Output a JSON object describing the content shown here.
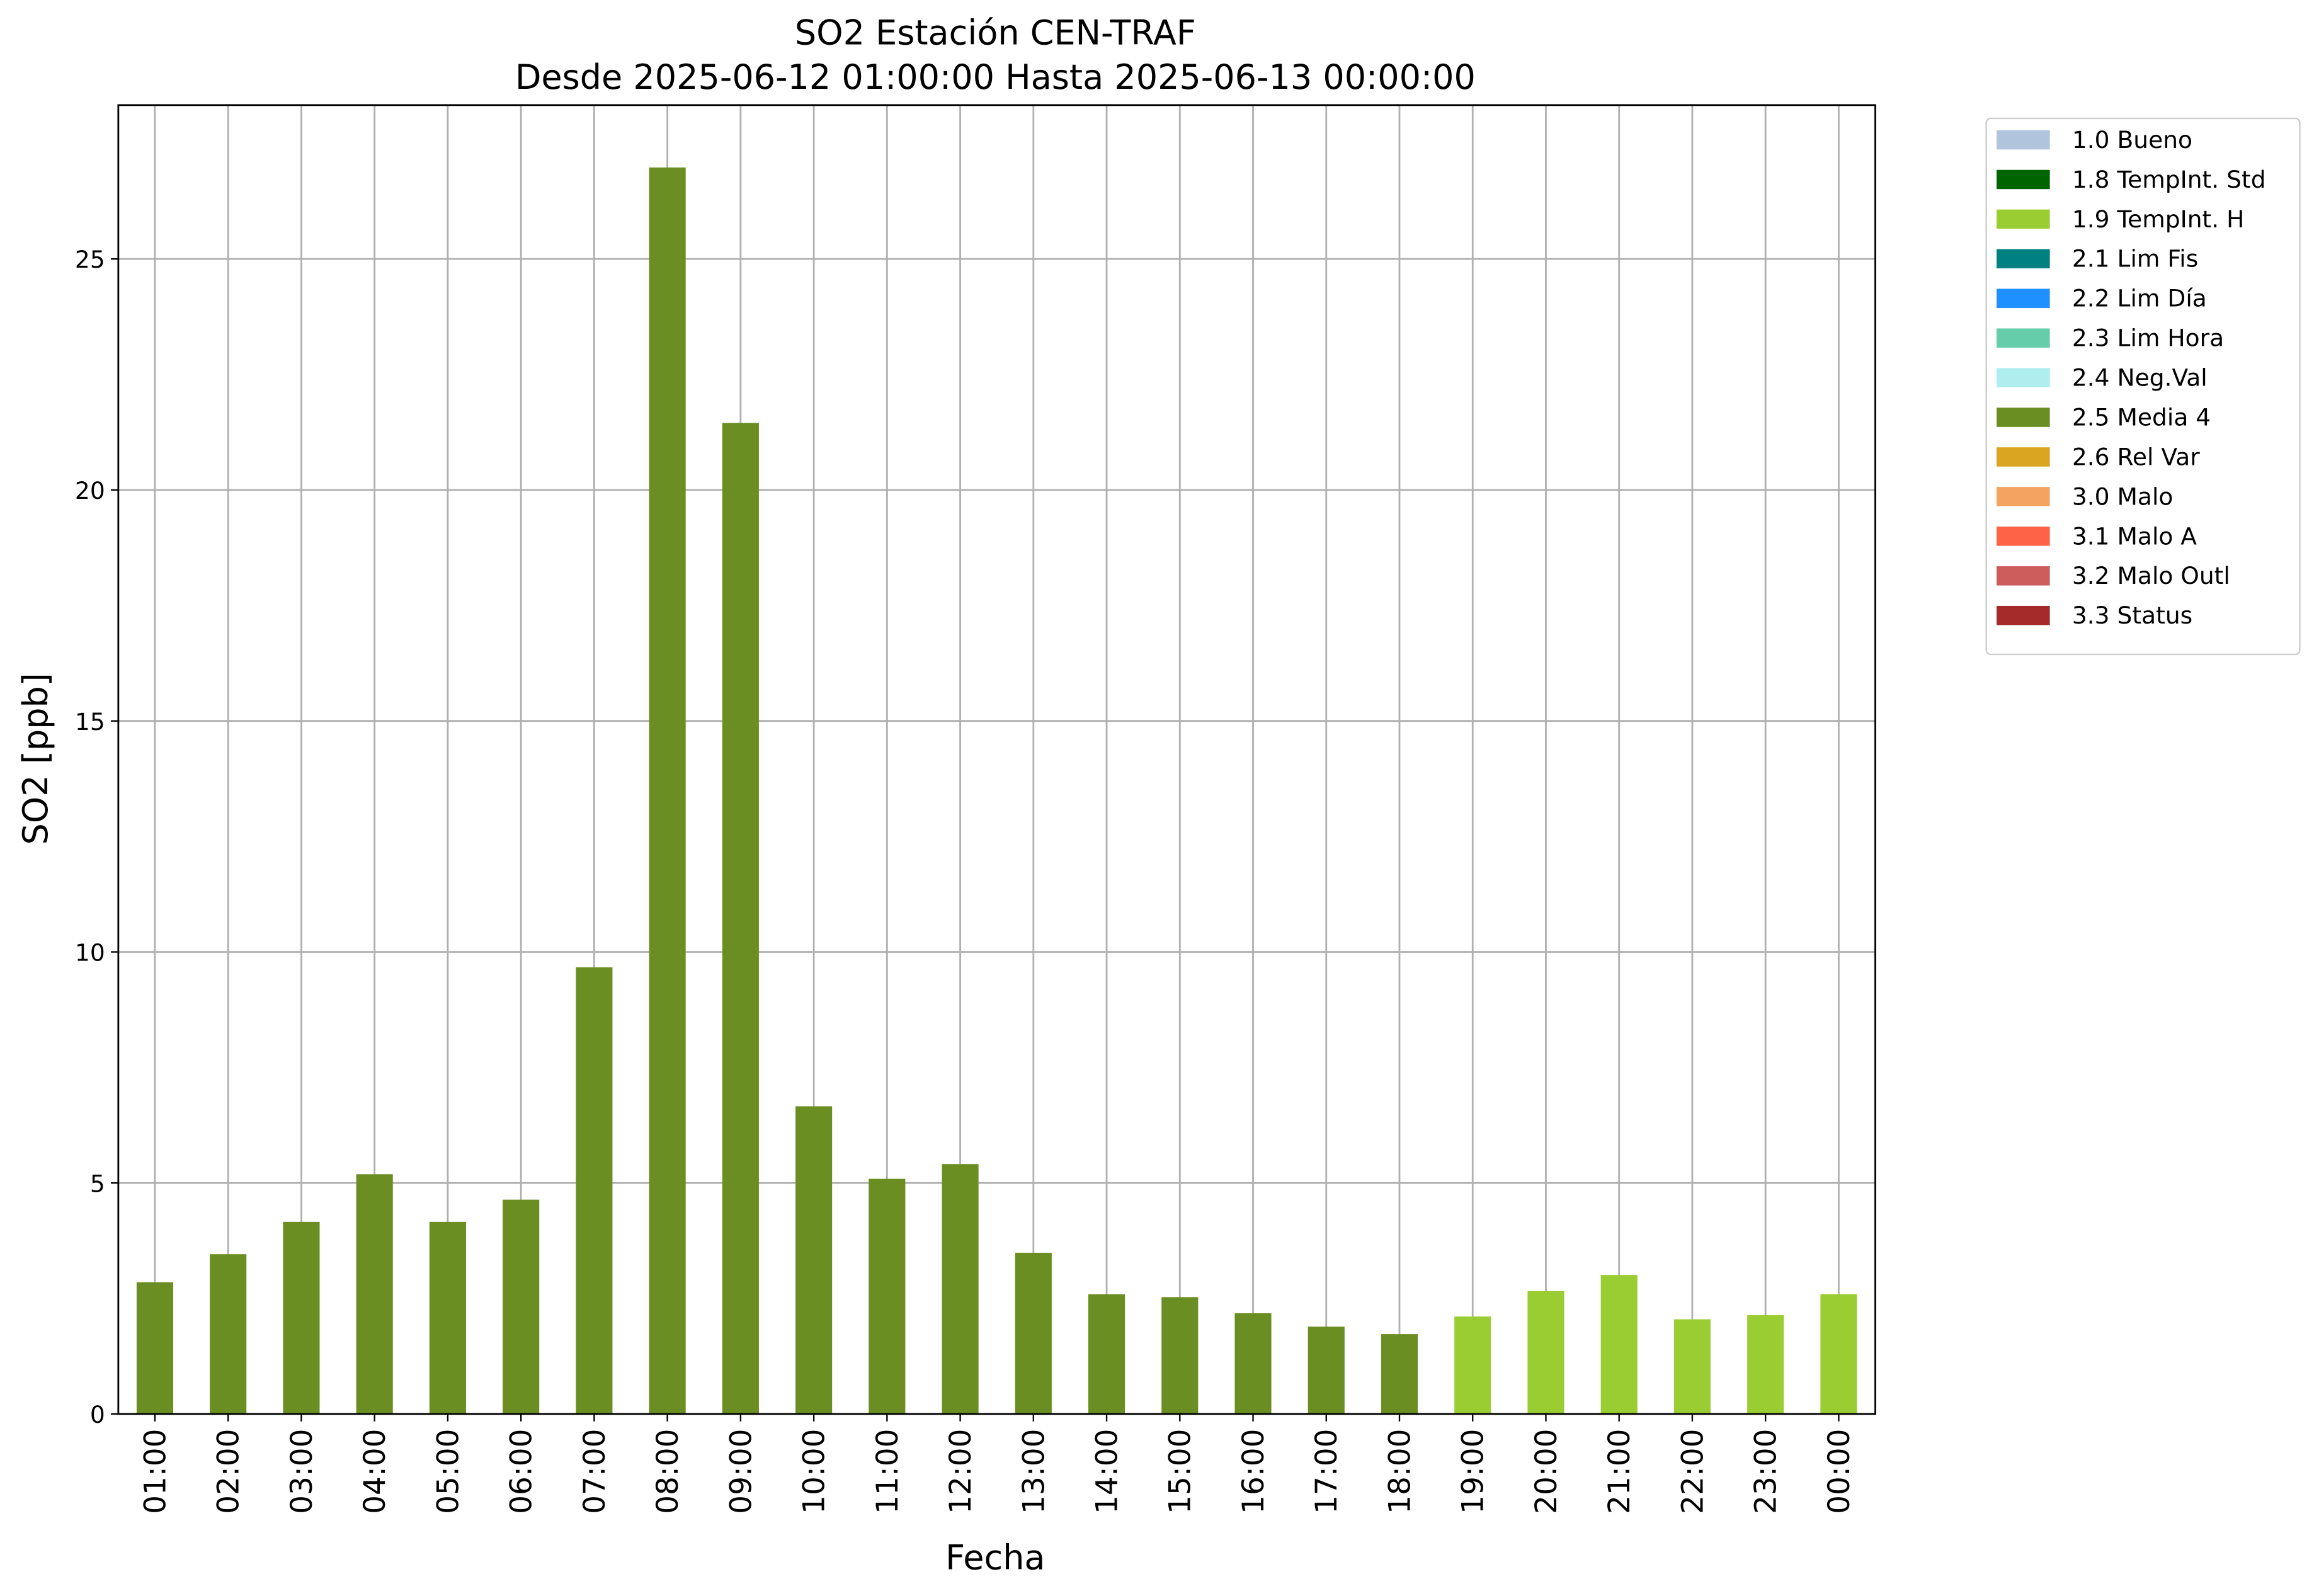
{
  "chart_data": {
    "type": "bar",
    "stacked": true,
    "title": "SO2 Estación CEN-TRAF",
    "subtitle": "Desde 2025-06-12 01:00:00 Hasta 2025-06-13 00:00:00",
    "x_label": "Fecha",
    "y_label": "SO2 [ppb]",
    "categories": [
      "01:00",
      "02:00",
      "03:00",
      "04:00",
      "05:00",
      "06:00",
      "07:00",
      "08:00",
      "09:00",
      "10:00",
      "11:00",
      "12:00",
      "13:00",
      "14:00",
      "15:00",
      "16:00",
      "17:00",
      "18:00",
      "19:00",
      "20:00",
      "21:00",
      "22:00",
      "23:00",
      "00:00"
    ],
    "series": [
      {
        "name": "1.0 Bueno",
        "color": "#b0c4de",
        "values": [
          null,
          null,
          null,
          null,
          null,
          null,
          null,
          null,
          null,
          null,
          null,
          null,
          null,
          null,
          null,
          null,
          null,
          null,
          null,
          null,
          null,
          null,
          null,
          null
        ]
      },
      {
        "name": "1.8 TempInt. Std",
        "color": "#006400",
        "values": [
          null,
          null,
          null,
          null,
          null,
          null,
          null,
          null,
          null,
          null,
          null,
          null,
          null,
          null,
          null,
          null,
          null,
          null,
          null,
          null,
          null,
          null,
          null,
          null
        ]
      },
      {
        "name": "1.9 TempInt. H",
        "color": "#9acd32",
        "values": [
          null,
          null,
          null,
          null,
          null,
          null,
          null,
          null,
          null,
          null,
          null,
          null,
          null,
          null,
          null,
          null,
          null,
          null,
          2.11,
          2.66,
          3.01,
          2.05,
          2.14,
          2.59
        ]
      },
      {
        "name": "2.1 Lim Fis",
        "color": "#008080",
        "values": [
          null,
          null,
          null,
          null,
          null,
          null,
          null,
          null,
          null,
          null,
          null,
          null,
          null,
          null,
          null,
          null,
          null,
          null,
          null,
          null,
          null,
          null,
          null,
          null
        ]
      },
      {
        "name": "2.2 Lim Día",
        "color": "#1e90ff",
        "values": [
          null,
          null,
          null,
          null,
          null,
          null,
          null,
          null,
          null,
          null,
          null,
          null,
          null,
          null,
          null,
          null,
          null,
          null,
          null,
          null,
          null,
          null,
          null,
          null
        ]
      },
      {
        "name": "2.3 Lim Hora",
        "color": "#66cdaa",
        "values": [
          null,
          null,
          null,
          null,
          null,
          null,
          null,
          null,
          null,
          null,
          null,
          null,
          null,
          null,
          null,
          null,
          null,
          null,
          null,
          null,
          null,
          null,
          null,
          null
        ]
      },
      {
        "name": "2.4 Neg.Val",
        "color": "#afeeee",
        "values": [
          null,
          null,
          null,
          null,
          null,
          null,
          null,
          null,
          null,
          null,
          null,
          null,
          null,
          null,
          null,
          null,
          null,
          null,
          null,
          null,
          null,
          null,
          null,
          null
        ]
      },
      {
        "name": "2.5 Media 4",
        "color": "#6b8e23",
        "values": [
          2.85,
          3.46,
          4.16,
          5.19,
          4.16,
          4.64,
          9.67,
          26.98,
          21.45,
          6.66,
          5.09,
          5.41,
          3.49,
          2.59,
          2.53,
          2.18,
          1.89,
          1.73,
          null,
          null,
          null,
          null,
          null,
          null
        ]
      },
      {
        "name": "2.6 Rel Var",
        "color": "#daa520",
        "values": [
          null,
          null,
          null,
          null,
          null,
          null,
          null,
          null,
          null,
          null,
          null,
          null,
          null,
          null,
          null,
          null,
          null,
          null,
          null,
          null,
          null,
          null,
          null,
          null
        ]
      },
      {
        "name": "3.0 Malo",
        "color": "#f4a460",
        "values": [
          null,
          null,
          null,
          null,
          null,
          null,
          null,
          null,
          null,
          null,
          null,
          null,
          null,
          null,
          null,
          null,
          null,
          null,
          null,
          null,
          null,
          null,
          null,
          null
        ]
      },
      {
        "name": "3.1 Malo A",
        "color": "#ff6347",
        "values": [
          null,
          null,
          null,
          null,
          null,
          null,
          null,
          null,
          null,
          null,
          null,
          null,
          null,
          null,
          null,
          null,
          null,
          null,
          null,
          null,
          null,
          null,
          null,
          null
        ]
      },
      {
        "name": "3.2 Malo Outl",
        "color": "#cd5c5c",
        "values": [
          null,
          null,
          null,
          null,
          null,
          null,
          null,
          null,
          null,
          null,
          null,
          null,
          null,
          null,
          null,
          null,
          null,
          null,
          null,
          null,
          null,
          null,
          null,
          null
        ]
      },
      {
        "name": "3.3 Status",
        "color": "#a52a2a",
        "values": [
          null,
          null,
          null,
          null,
          null,
          null,
          null,
          null,
          null,
          null,
          null,
          null,
          null,
          null,
          null,
          null,
          null,
          null,
          null,
          null,
          null,
          null,
          null,
          null
        ]
      }
    ],
    "ylim": [
      0,
      28.33
    ],
    "yticks": [
      0,
      5,
      10,
      15,
      20,
      25
    ],
    "grid": true,
    "legend": "outside-right"
  }
}
